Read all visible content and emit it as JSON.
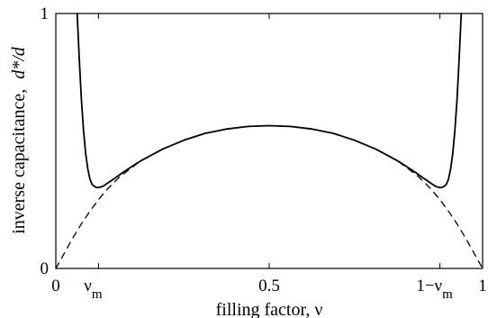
{
  "chart_data": {
    "type": "line",
    "xlabel": "filling factor, ν",
    "ylabel": "inverse capacitance,",
    "ylabel_suffix": "d*/d",
    "xlim": [
      0,
      1
    ],
    "ylim": [
      0,
      1
    ],
    "grid": false,
    "x_ticks": [
      {
        "value": 0,
        "label": "0"
      },
      {
        "value": 0.5,
        "label": "0.5"
      },
      {
        "value": 1,
        "label": "1"
      }
    ],
    "y_ticks": [
      {
        "value": 0,
        "label": "0"
      },
      {
        "value": 1,
        "label": "1"
      }
    ],
    "special_ticks": [
      {
        "value": 0.1,
        "base": "ν",
        "sub": "m"
      },
      {
        "value": 0.9,
        "base": "1−ν",
        "sub": "m"
      }
    ],
    "series": [
      {
        "style": "solid",
        "x": [
          0.05,
          0.055,
          0.06,
          0.065,
          0.07,
          0.075,
          0.08,
          0.085,
          0.09,
          0.095,
          0.1,
          0.11,
          0.12,
          0.14,
          0.16,
          0.18,
          0.2,
          0.25,
          0.3,
          0.35,
          0.4,
          0.45,
          0.5,
          0.55,
          0.6,
          0.65,
          0.7,
          0.75,
          0.8,
          0.82,
          0.84,
          0.86,
          0.88,
          0.89,
          0.9,
          0.905,
          0.91,
          0.915,
          0.92,
          0.925,
          0.93,
          0.935,
          0.94,
          0.945,
          0.95
        ],
        "y": [
          1.0,
          0.82,
          0.66,
          0.54,
          0.45,
          0.39,
          0.35,
          0.33,
          0.322,
          0.318,
          0.317,
          0.322,
          0.333,
          0.356,
          0.38,
          0.402,
          0.423,
          0.468,
          0.503,
          0.53,
          0.547,
          0.557,
          0.56,
          0.557,
          0.547,
          0.53,
          0.503,
          0.468,
          0.423,
          0.402,
          0.38,
          0.356,
          0.333,
          0.322,
          0.317,
          0.318,
          0.322,
          0.33,
          0.35,
          0.39,
          0.45,
          0.54,
          0.66,
          0.82,
          1.0
        ]
      },
      {
        "style": "dashed",
        "x": [
          0.0,
          0.02,
          0.04,
          0.06,
          0.08,
          0.1,
          0.12,
          0.15,
          0.2,
          0.25,
          0.3,
          0.35,
          0.4,
          0.45,
          0.5,
          0.55,
          0.6,
          0.65,
          0.7,
          0.75,
          0.8,
          0.85,
          0.88,
          0.9,
          0.92,
          0.94,
          0.96,
          0.98,
          1.0
        ],
        "y": [
          0.0,
          0.06,
          0.12,
          0.175,
          0.225,
          0.27,
          0.31,
          0.36,
          0.423,
          0.468,
          0.503,
          0.53,
          0.547,
          0.557,
          0.56,
          0.557,
          0.547,
          0.53,
          0.503,
          0.468,
          0.423,
          0.36,
          0.31,
          0.27,
          0.225,
          0.175,
          0.12,
          0.06,
          0.0
        ]
      }
    ]
  }
}
